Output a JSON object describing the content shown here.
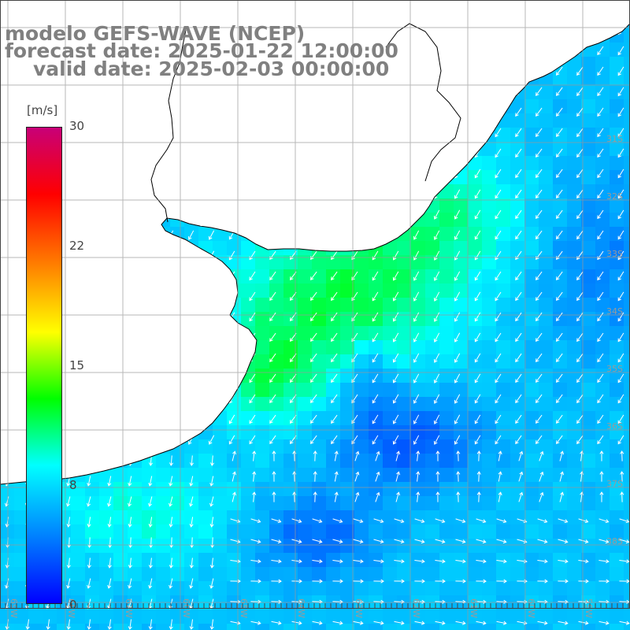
{
  "title": {
    "line1": "modelo GEFS-WAVE (NCEP)",
    "line2": "forecast date: 2025-01-22 12:00:00",
    "line3": "valid date: 2025-02-03 00:00:00"
  },
  "colorbar": {
    "unit": "[m/s]",
    "ticks": [
      "30",
      "22",
      "15",
      "8",
      "0"
    ],
    "min": 0,
    "max": 30,
    "colors": [
      "#0000ff",
      "#0080ff",
      "#00ffff",
      "#00ff00",
      "#ffff00",
      "#ff8000",
      "#ff0000",
      "#c80078"
    ]
  },
  "map": {
    "lon_labels": [
      "69W",
      "68W",
      "67W",
      "66W",
      "65W",
      "64W",
      "63W",
      "62W",
      "61W",
      "60W",
      "59W",
      "58W"
    ],
    "lat_labels": [
      "31S",
      "32S",
      "33S",
      "34S",
      "35S",
      "36S",
      "37S",
      "38S"
    ],
    "land_color": "#ffffff",
    "coast_color": "#000000",
    "grid_color": "#999999",
    "arrow_color": "#ffffff"
  }
}
